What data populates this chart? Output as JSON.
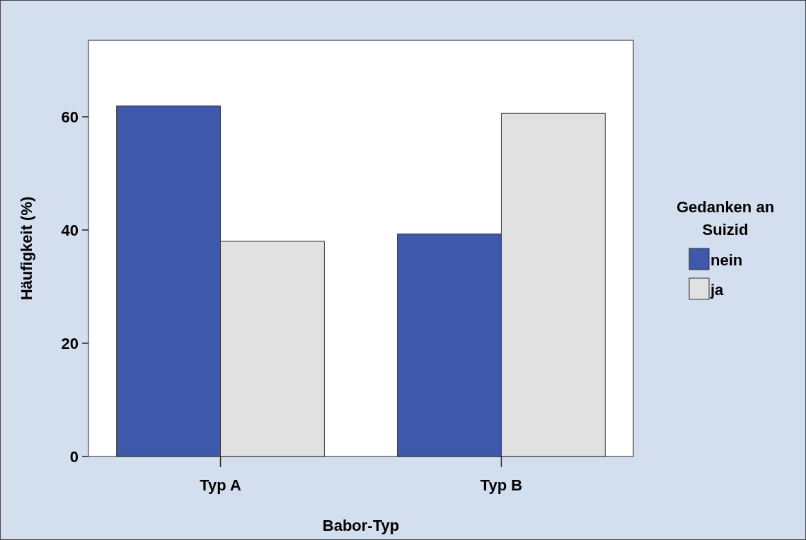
{
  "chart_data": {
    "type": "bar",
    "xlabel": "Babor-Typ",
    "ylabel": "Häufigkeit (%)",
    "legend_title": "Gedanken an Suizid",
    "categories": [
      "Typ A",
      "Typ B"
    ],
    "series": [
      {
        "name": "nein",
        "color": "#3e58ac",
        "values": [
          61.9,
          39.3
        ]
      },
      {
        "name": "ja",
        "color": "#e1e1e1",
        "values": [
          38.0,
          60.6
        ]
      }
    ],
    "ylim": [
      0,
      73.5
    ],
    "yticks": [
      0,
      20,
      40,
      60
    ],
    "grid": false,
    "legend": "right"
  }
}
